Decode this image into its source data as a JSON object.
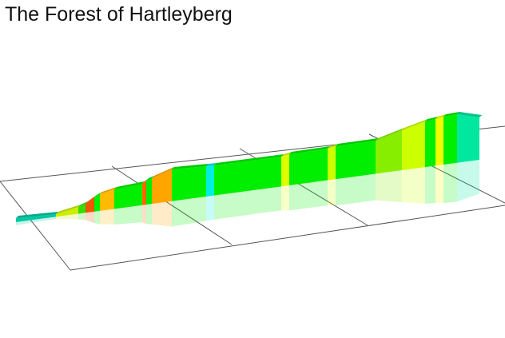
{
  "header": {
    "title": "The Forest of Hartleyberg"
  }
}
